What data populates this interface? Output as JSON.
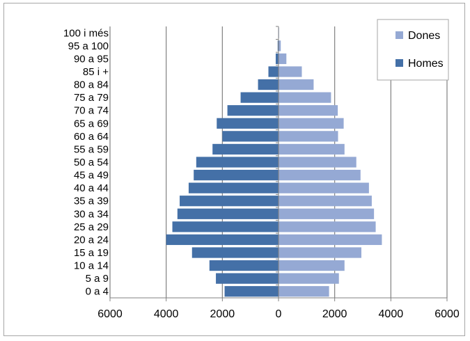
{
  "chart_data": {
    "type": "bar",
    "orientation": "horizontal",
    "subtype": "population-pyramid",
    "categories": [
      "0 a 4",
      "5 a 9",
      "10 a 14",
      "15 a 19",
      "20 a 24",
      "25 a 29",
      "30 a 34",
      "35 a 39",
      "40 a 44",
      "45 a 49",
      "50 a 54",
      "55 a 59",
      "60 a 64",
      "65 a 69",
      "70 a 74",
      "75 a 79",
      "80 a 84",
      "85 i +",
      "90 a 95",
      "95 a 100",
      "100 i més"
    ],
    "series": [
      {
        "name": "Dones",
        "color": "#95a9d4",
        "values": [
          1800,
          2150,
          2350,
          2950,
          3680,
          3460,
          3400,
          3320,
          3220,
          2920,
          2770,
          2350,
          2120,
          2320,
          2110,
          1870,
          1250,
          830,
          280,
          80,
          20
        ]
      },
      {
        "name": "Homes",
        "color": "#4470a7",
        "values": [
          -1920,
          -2230,
          -2460,
          -3080,
          -4000,
          -3780,
          -3600,
          -3520,
          -3200,
          -3020,
          -2930,
          -2350,
          -2000,
          -2200,
          -1820,
          -1350,
          -730,
          -360,
          -100,
          -30,
          -10
        ]
      }
    ],
    "xlim": [
      -6000,
      6000
    ],
    "x_ticks": [
      -6000,
      -4000,
      -2000,
      0,
      2000,
      4000,
      6000
    ],
    "x_tick_labels": [
      "6000",
      "4000",
      "2000",
      "0",
      "2000",
      "4000",
      "6000"
    ],
    "grid": "vertical",
    "legend_position": "top-right",
    "title": "",
    "xlabel": "",
    "ylabel": ""
  }
}
